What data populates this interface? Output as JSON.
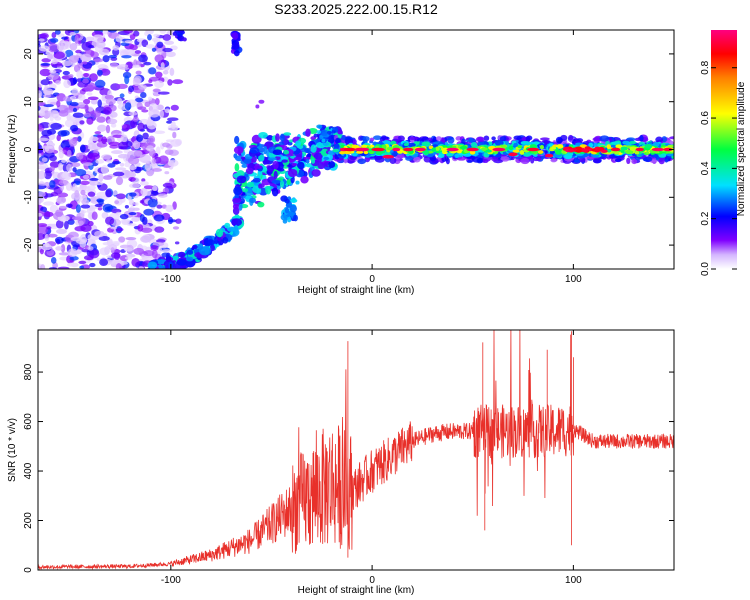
{
  "title": "S233.2025.222.00.15.R12",
  "chart_data": [
    {
      "type": "heatmap",
      "name": "spectrogram",
      "xlabel": "Height of straight line (km)",
      "ylabel": "Frequency (Hz)",
      "xlim": [
        -166,
        150
      ],
      "ylim": [
        -25,
        25
      ],
      "xticks": [
        -100,
        0,
        100
      ],
      "yticks": [
        -20,
        -10,
        0,
        10,
        20
      ],
      "colorbar": {
        "label": "Normalized spectral amplitude",
        "range": [
          0.0,
          0.95
        ],
        "ticks": [
          0.0,
          0.2,
          0.4,
          0.6,
          0.8
        ],
        "colors": [
          "#ffffff",
          "#d4b5ff",
          "#8000ff",
          "#0000ff",
          "#00e0ff",
          "#00ff40",
          "#ffff00",
          "#ff8000",
          "#ff0000",
          "#ff0080"
        ]
      },
      "regions": [
        {
          "desc": "scattered noise",
          "x": [
            -166,
            -100
          ],
          "y": [
            -25,
            25
          ],
          "amp": [
            0.05,
            0.25
          ]
        },
        {
          "desc": "tail",
          "x": [
            -110,
            -65
          ],
          "y": [
            -25,
            -15
          ],
          "amp": [
            0.15,
            0.4
          ]
        },
        {
          "desc": "rising tone",
          "x": [
            -68,
            -18
          ],
          "y": [
            -14,
            5
          ],
          "amp": [
            0.2,
            0.45
          ]
        },
        {
          "desc": "carrier line",
          "x": [
            -18,
            150
          ],
          "y": [
            -1.5,
            1.5
          ],
          "amp": [
            0.35,
            0.95
          ]
        }
      ]
    },
    {
      "type": "line",
      "name": "snr",
      "xlabel": "Height of straight line (km)",
      "ylabel": "SNR (10 * v/v)",
      "xlim": [
        -166,
        150
      ],
      "ylim": [
        0,
        970
      ],
      "xticks": [
        -100,
        0,
        100
      ],
      "yticks": [
        0,
        200,
        400,
        600,
        800
      ],
      "color": "#e8302a",
      "series": [
        {
          "name": "SNR",
          "x": [
            -166,
            -120,
            -100,
            -80,
            -60,
            -40,
            -20,
            -10,
            0,
            10,
            20,
            30,
            40,
            60,
            80,
            90,
            100,
            110,
            120,
            150
          ],
          "y": [
            12,
            15,
            25,
            60,
            120,
            250,
            350,
            320,
            400,
            460,
            520,
            550,
            560,
            560,
            560,
            560,
            570,
            520,
            520,
            520
          ]
        }
      ]
    }
  ]
}
